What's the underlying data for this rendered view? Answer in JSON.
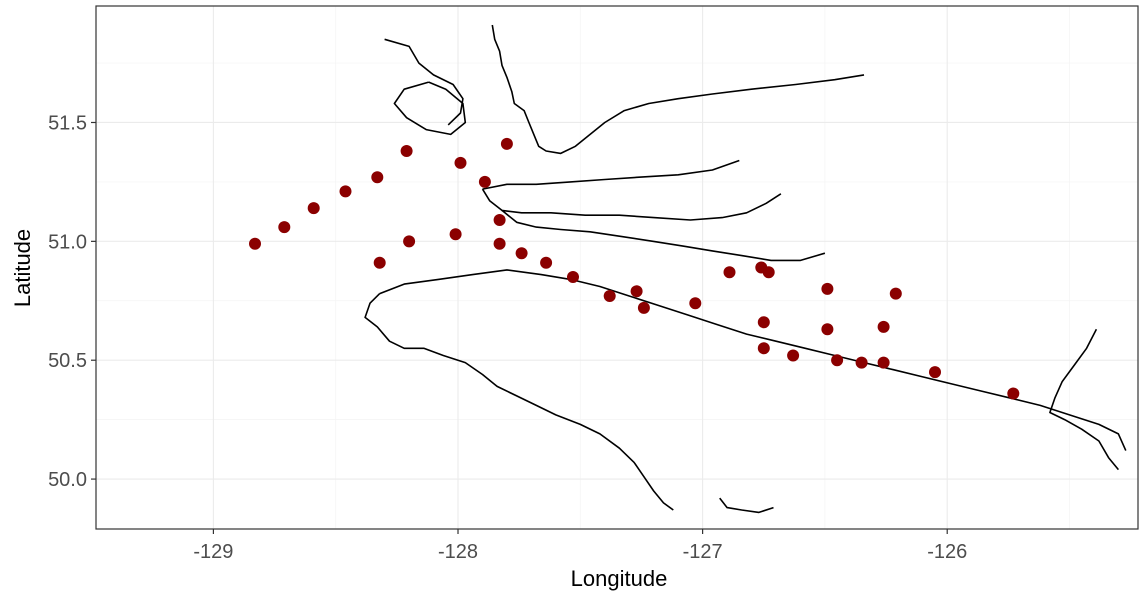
{
  "chart_data": {
    "type": "scatter",
    "xlabel": "Longitude",
    "ylabel": "Latitude",
    "xlim": [
      -129.48,
      -125.22
    ],
    "ylim": [
      49.79,
      51.99
    ],
    "x_ticks": [
      -129,
      -128,
      -127,
      -126
    ],
    "y_ticks": [
      50.0,
      50.5,
      51.0,
      51.5
    ],
    "x_tick_labels": [
      "-129",
      "-128",
      "-127",
      "-126"
    ],
    "y_tick_labels": [
      "50.0",
      "50.5",
      "51.0",
      "51.5"
    ],
    "grid": true,
    "point_color": "#8b0000",
    "coastline_color": "#000000",
    "series": [
      {
        "values": [
          {
            "x": -128.83,
            "y": 50.99
          },
          {
            "x": -128.71,
            "y": 51.06
          },
          {
            "x": -128.59,
            "y": 51.14
          },
          {
            "x": -128.46,
            "y": 51.21
          },
          {
            "x": -128.33,
            "y": 51.27
          },
          {
            "x": -128.21,
            "y": 51.38
          },
          {
            "x": -127.99,
            "y": 51.33
          },
          {
            "x": -127.89,
            "y": 51.25
          },
          {
            "x": -127.8,
            "y": 51.41
          },
          {
            "x": -127.83,
            "y": 51.09
          },
          {
            "x": -128.32,
            "y": 50.91
          },
          {
            "x": -128.2,
            "y": 51.0
          },
          {
            "x": -128.01,
            "y": 51.03
          },
          {
            "x": -127.83,
            "y": 50.99
          },
          {
            "x": -127.74,
            "y": 50.95
          },
          {
            "x": -127.64,
            "y": 50.91
          },
          {
            "x": -127.53,
            "y": 50.85
          },
          {
            "x": -127.38,
            "y": 50.77
          },
          {
            "x": -127.27,
            "y": 50.79
          },
          {
            "x": -127.24,
            "y": 50.72
          },
          {
            "x": -127.03,
            "y": 50.74
          },
          {
            "x": -126.89,
            "y": 50.87
          },
          {
            "x": -126.76,
            "y": 50.89
          },
          {
            "x": -126.73,
            "y": 50.87
          },
          {
            "x": -126.75,
            "y": 50.66
          },
          {
            "x": -126.75,
            "y": 50.55
          },
          {
            "x": -126.63,
            "y": 50.52
          },
          {
            "x": -126.49,
            "y": 50.8
          },
          {
            "x": -126.49,
            "y": 50.63
          },
          {
            "x": -126.45,
            "y": 50.5
          },
          {
            "x": -126.35,
            "y": 50.49
          },
          {
            "x": -126.26,
            "y": 50.49
          },
          {
            "x": -126.26,
            "y": 50.64
          },
          {
            "x": -126.21,
            "y": 50.78
          },
          {
            "x": -126.05,
            "y": 50.45
          },
          {
            "x": -125.73,
            "y": 50.36
          }
        ]
      }
    ],
    "coastlines": [
      [
        [
          -127.86,
          51.91
        ],
        [
          -127.85,
          51.85
        ],
        [
          -127.83,
          51.8
        ],
        [
          -127.82,
          51.74
        ],
        [
          -127.8,
          51.69
        ],
        [
          -127.78,
          51.63
        ],
        [
          -127.77,
          51.58
        ],
        [
          -127.73,
          51.55
        ],
        [
          -127.71,
          51.5
        ],
        [
          -127.69,
          51.45
        ],
        [
          -127.67,
          51.4
        ],
        [
          -127.64,
          51.38
        ],
        [
          -127.58,
          51.37
        ],
        [
          -127.52,
          51.4
        ],
        [
          -127.46,
          51.45
        ],
        [
          -127.4,
          51.5
        ],
        [
          -127.32,
          51.55
        ],
        [
          -127.22,
          51.58
        ],
        [
          -127.1,
          51.6
        ],
        [
          -126.96,
          51.62
        ],
        [
          -126.8,
          51.64
        ],
        [
          -126.62,
          51.66
        ],
        [
          -126.46,
          51.68
        ],
        [
          -126.34,
          51.7
        ]
      ],
      [
        [
          -127.9,
          51.22
        ],
        [
          -127.8,
          51.24
        ],
        [
          -127.68,
          51.24
        ],
        [
          -127.54,
          51.25
        ],
        [
          -127.4,
          51.26
        ],
        [
          -127.26,
          51.27
        ],
        [
          -127.1,
          51.28
        ],
        [
          -126.96,
          51.3
        ],
        [
          -126.85,
          51.34
        ]
      ],
      [
        [
          -127.9,
          51.22
        ],
        [
          -127.87,
          51.17
        ],
        [
          -127.82,
          51.13
        ],
        [
          -127.74,
          51.12
        ],
        [
          -127.62,
          51.12
        ],
        [
          -127.48,
          51.11
        ],
        [
          -127.34,
          51.11
        ],
        [
          -127.2,
          51.1
        ],
        [
          -127.05,
          51.09
        ],
        [
          -126.92,
          51.1
        ],
        [
          -126.82,
          51.12
        ],
        [
          -126.74,
          51.16
        ],
        [
          -126.68,
          51.2
        ]
      ],
      [
        [
          -127.82,
          51.13
        ],
        [
          -127.76,
          51.08
        ],
        [
          -127.68,
          51.06
        ],
        [
          -127.58,
          51.05
        ],
        [
          -127.46,
          51.04
        ],
        [
          -127.33,
          51.02
        ],
        [
          -127.2,
          51.0
        ],
        [
          -127.08,
          50.98
        ],
        [
          -126.96,
          50.96
        ],
        [
          -126.84,
          50.94
        ],
        [
          -126.72,
          50.92
        ],
        [
          -126.6,
          50.92
        ],
        [
          -126.5,
          50.95
        ]
      ],
      [
        [
          -128.3,
          51.85
        ],
        [
          -128.2,
          51.82
        ],
        [
          -128.16,
          51.75
        ],
        [
          -128.1,
          51.7
        ],
        [
          -128.02,
          51.66
        ],
        [
          -127.98,
          51.6
        ],
        [
          -127.99,
          51.54
        ],
        [
          -128.04,
          51.49
        ]
      ],
      [
        [
          -128.12,
          51.67
        ],
        [
          -128.22,
          51.64
        ],
        [
          -128.26,
          51.58
        ],
        [
          -128.21,
          51.52
        ],
        [
          -128.13,
          51.47
        ],
        [
          -128.03,
          51.45
        ],
        [
          -127.97,
          51.5
        ],
        [
          -127.98,
          51.58
        ],
        [
          -128.05,
          51.64
        ],
        [
          -128.12,
          51.67
        ]
      ],
      [
        [
          -128.32,
          50.78
        ],
        [
          -128.22,
          50.82
        ],
        [
          -128.08,
          50.84
        ],
        [
          -127.94,
          50.86
        ],
        [
          -127.8,
          50.88
        ],
        [
          -127.66,
          50.86
        ],
        [
          -127.54,
          50.84
        ],
        [
          -127.42,
          50.81
        ],
        [
          -127.3,
          50.77
        ],
        [
          -127.18,
          50.73
        ],
        [
          -127.06,
          50.69
        ],
        [
          -126.94,
          50.65
        ],
        [
          -126.82,
          50.61
        ],
        [
          -126.7,
          50.58
        ],
        [
          -126.58,
          50.55
        ],
        [
          -126.46,
          50.52
        ],
        [
          -126.34,
          50.49
        ],
        [
          -126.22,
          50.46
        ],
        [
          -126.1,
          50.43
        ],
        [
          -125.98,
          50.4
        ],
        [
          -125.86,
          50.37
        ],
        [
          -125.74,
          50.34
        ],
        [
          -125.62,
          50.31
        ],
        [
          -125.5,
          50.27
        ],
        [
          -125.38,
          50.23
        ],
        [
          -125.3,
          50.19
        ],
        [
          -125.27,
          50.12
        ]
      ],
      [
        [
          -128.32,
          50.78
        ],
        [
          -128.36,
          50.74
        ],
        [
          -128.38,
          50.68
        ],
        [
          -128.33,
          50.64
        ],
        [
          -128.28,
          50.58
        ],
        [
          -128.22,
          50.55
        ],
        [
          -128.14,
          50.55
        ],
        [
          -128.06,
          50.52
        ],
        [
          -127.97,
          50.49
        ],
        [
          -127.9,
          50.44
        ],
        [
          -127.84,
          50.39
        ],
        [
          -127.76,
          50.35
        ],
        [
          -127.68,
          50.31
        ],
        [
          -127.6,
          50.27
        ],
        [
          -127.5,
          50.23
        ],
        [
          -127.42,
          50.19
        ],
        [
          -127.34,
          50.13
        ],
        [
          -127.28,
          50.07
        ],
        [
          -127.24,
          50.01
        ],
        [
          -127.2,
          49.95
        ],
        [
          -127.16,
          49.9
        ],
        [
          -127.12,
          49.87
        ]
      ],
      [
        [
          -126.93,
          49.92
        ],
        [
          -126.9,
          49.88
        ],
        [
          -126.84,
          49.87
        ],
        [
          -126.77,
          49.86
        ],
        [
          -126.71,
          49.88
        ]
      ],
      [
        [
          -125.39,
          50.63
        ],
        [
          -125.43,
          50.55
        ],
        [
          -125.48,
          50.48
        ],
        [
          -125.53,
          50.41
        ],
        [
          -125.56,
          50.34
        ],
        [
          -125.58,
          50.28
        ],
        [
          -125.52,
          50.25
        ],
        [
          -125.45,
          50.21
        ],
        [
          -125.38,
          50.16
        ],
        [
          -125.34,
          50.09
        ],
        [
          -125.3,
          50.04
        ]
      ]
    ]
  }
}
